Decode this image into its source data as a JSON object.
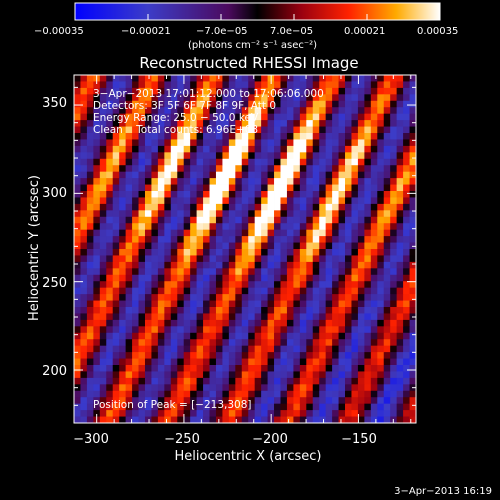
{
  "chart_data": {
    "type": "heatmap",
    "title": "Reconstructed RHESSI Image",
    "xlabel": "Heliocentric X (arcsec)",
    "ylabel": "Heliocentric Y (arcsec)",
    "xlim": [
      -313,
      -117
    ],
    "ylim": [
      170,
      367
    ],
    "x_ticks": [
      {
        "value": -300,
        "label": "−300"
      },
      {
        "value": -250,
        "label": "−250"
      },
      {
        "value": -200,
        "label": "−200"
      },
      {
        "value": -150,
        "label": "−150"
      }
    ],
    "y_ticks": [
      {
        "value": 200,
        "label": "200"
      },
      {
        "value": 250,
        "label": "250"
      },
      {
        "value": 300,
        "label": "300"
      },
      {
        "value": 350,
        "label": "350"
      }
    ],
    "colorbar": {
      "range": [
        -0.00035,
        0.00035
      ],
      "ticks": [
        {
          "value": -0.00035,
          "label": "−0.00035"
        },
        {
          "value": -0.00021,
          "label": "−0.00021"
        },
        {
          "value": -7e-05,
          "label": "−7.0e−05"
        },
        {
          "value": 7e-05,
          "label": "7.0e−05"
        },
        {
          "value": 0.00021,
          "label": "0.00021"
        },
        {
          "value": 0.00035,
          "label": "0.00035"
        }
      ],
      "units_label": "(photons cm⁻² s⁻¹ asec⁻²)"
    },
    "annotations": [
      "3−Apr−2013 17:01:12.000 to 17:06:06.000",
      "Detectors: 3F 5F 6F 7F 8F 9F, Att 0",
      "Energy Range: 25.0 − 50.0 keV",
      "Clean    Total counts: 6.96E+03"
    ],
    "peak_label": "Position of Peak = [−213,308]",
    "peak_position": [
      -213,
      308
    ],
    "grid": false
  },
  "footer_date": "3−Apr−2013 16:19"
}
